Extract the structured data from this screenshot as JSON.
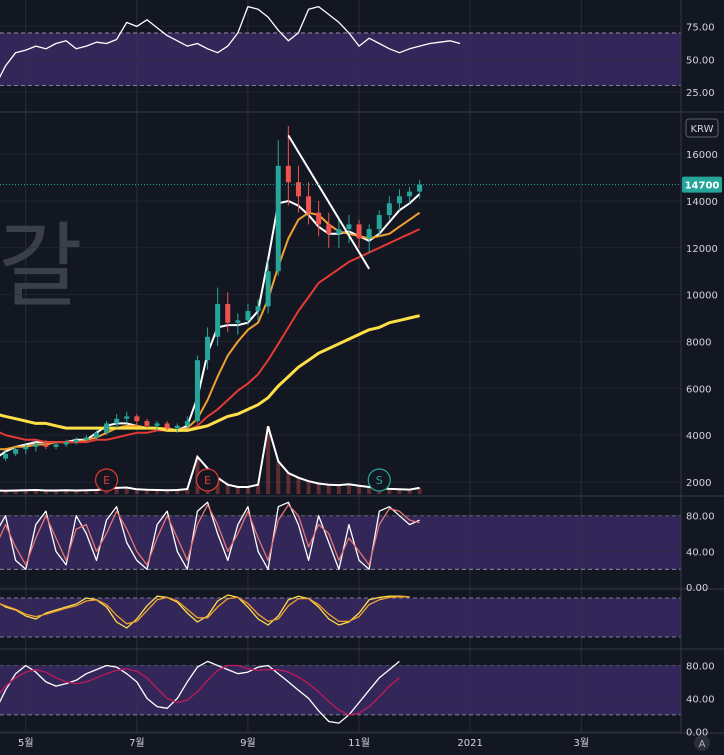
{
  "chart_data": [
    {
      "type": "line",
      "panel": "rsi",
      "y_ticks": [
        "75.00",
        "50.00",
        "25.00"
      ],
      "y_tick_values": [
        75,
        50,
        25
      ],
      "ylim": [
        10,
        95
      ],
      "bands": [
        70,
        30
      ],
      "series": [
        {
          "color": "#ffffff",
          "values": [
            44,
            38,
            26,
            20,
            30,
            45,
            55,
            57,
            60,
            58,
            62,
            64,
            58,
            60,
            63,
            62,
            65,
            78,
            75,
            80,
            74,
            68,
            64,
            60,
            62,
            58,
            55,
            60,
            70,
            90,
            88,
            82,
            72,
            64,
            70,
            88,
            90,
            84,
            78,
            70,
            60,
            66,
            62,
            58,
            55,
            58,
            60,
            62,
            63,
            64,
            62
          ]
        }
      ]
    },
    {
      "type": "candlestick",
      "panel": "price",
      "currency": "KRW",
      "last_price": "14700",
      "y_ticks": [
        "16000",
        "14000",
        "12000",
        "10000",
        "8000",
        "6000",
        "4000",
        "2000"
      ],
      "y_tick_values": [
        16000,
        14000,
        12000,
        10000,
        8000,
        6000,
        4000,
        2000
      ],
      "ylim": [
        1400,
        17800
      ],
      "candles": [
        [
          4200,
          4500,
          3900,
          4300
        ],
        [
          4300,
          4400,
          3300,
          3500
        ],
        [
          3500,
          3700,
          2800,
          3000
        ],
        [
          3000,
          3200,
          2500,
          2800
        ],
        [
          2800,
          3100,
          2600,
          3000
        ],
        [
          3000,
          3300,
          2900,
          3200
        ],
        [
          3200,
          3500,
          3100,
          3400
        ],
        [
          3400,
          3600,
          3200,
          3500
        ],
        [
          3500,
          3700,
          3300,
          3600
        ],
        [
          3600,
          3800,
          3400,
          3500
        ],
        [
          3500,
          3700,
          3400,
          3600
        ],
        [
          3600,
          3800,
          3500,
          3700
        ],
        [
          3700,
          3900,
          3600,
          3800
        ],
        [
          3800,
          4000,
          3700,
          3900
        ],
        [
          3900,
          4200,
          3800,
          4100
        ],
        [
          4100,
          4600,
          4000,
          4500
        ],
        [
          4500,
          4900,
          4300,
          4700
        ],
        [
          4700,
          5000,
          4500,
          4800
        ],
        [
          4800,
          4900,
          4400,
          4600
        ],
        [
          4600,
          4700,
          4300,
          4400
        ],
        [
          4400,
          4600,
          4200,
          4500
        ],
        [
          4500,
          4600,
          4200,
          4300
        ],
        [
          4300,
          4500,
          4100,
          4400
        ],
        [
          4400,
          4800,
          4300,
          4600
        ],
        [
          4600,
          7400,
          4500,
          7200
        ],
        [
          7200,
          8600,
          6800,
          8200
        ],
        [
          8200,
          10300,
          7800,
          9600
        ],
        [
          9600,
          10100,
          8400,
          8800
        ],
        [
          8800,
          9200,
          8300,
          8900
        ],
        [
          8900,
          9600,
          8700,
          9300
        ],
        [
          9300,
          9800,
          8900,
          9500
        ],
        [
          9500,
          11500,
          9200,
          11000
        ],
        [
          11000,
          16600,
          10800,
          15500
        ],
        [
          15500,
          17200,
          13800,
          14800
        ],
        [
          14800,
          15500,
          13500,
          14200
        ],
        [
          14200,
          14800,
          13000,
          13500
        ],
        [
          13500,
          14000,
          12500,
          13000
        ],
        [
          13000,
          13500,
          12000,
          12600
        ],
        [
          12600,
          13200,
          12000,
          12800
        ],
        [
          12800,
          13400,
          12200,
          13000
        ],
        [
          13000,
          13200,
          12000,
          12400
        ],
        [
          12400,
          13000,
          11800,
          12800
        ],
        [
          12800,
          13600,
          12500,
          13400
        ],
        [
          13400,
          14200,
          13200,
          13900
        ],
        [
          13900,
          14500,
          13600,
          14200
        ],
        [
          14200,
          14600,
          13900,
          14400
        ],
        [
          14400,
          14900,
          14100,
          14700
        ]
      ],
      "series": [
        {
          "color": "#ffffff",
          "values": [
            4300,
            3600,
            3000,
            2800,
            3000,
            3300,
            3500,
            3600,
            3700,
            3700,
            3700,
            3700,
            3800,
            3800,
            4100,
            4400,
            4500,
            4500,
            4400,
            4300,
            4300,
            4200,
            4200,
            4400,
            5600,
            7500,
            8600,
            8700,
            8700,
            8800,
            9300,
            11500,
            13900,
            14000,
            13800,
            13400,
            12900,
            12600,
            12600,
            12700,
            12500,
            12300,
            12600,
            13100,
            13600,
            13900,
            14300
          ]
        },
        {
          "color": "#f0a030",
          "values": [
            4800,
            4300,
            3800,
            3500,
            3400,
            3400,
            3500,
            3500,
            3600,
            3600,
            3700,
            3700,
            3700,
            3800,
            3900,
            4100,
            4300,
            4400,
            4400,
            4300,
            4300,
            4300,
            4200,
            4300,
            4700,
            5500,
            6500,
            7400,
            8000,
            8500,
            8800,
            9800,
            11200,
            12400,
            13200,
            13500,
            13400,
            13000,
            12700,
            12600,
            12500,
            12400,
            12500,
            12600,
            12900,
            13200,
            13500
          ]
        },
        {
          "color": "#e53935",
          "values": [
            5000,
            4800,
            4600,
            4400,
            4200,
            4000,
            3900,
            3800,
            3800,
            3700,
            3700,
            3700,
            3700,
            3700,
            3800,
            3800,
            3900,
            4000,
            4100,
            4100,
            4200,
            4200,
            4200,
            4200,
            4400,
            4800,
            5100,
            5500,
            5900,
            6200,
            6600,
            7200,
            7900,
            8600,
            9300,
            9900,
            10500,
            10800,
            11100,
            11400,
            11600,
            11800,
            12000,
            12200,
            12400,
            12600,
            12800
          ]
        },
        {
          "color": "#fde047",
          "values": [
            5500,
            5400,
            5200,
            5000,
            4900,
            4800,
            4700,
            4600,
            4500,
            4500,
            4400,
            4300,
            4300,
            4300,
            4300,
            4300,
            4300,
            4300,
            4300,
            4300,
            4300,
            4200,
            4200,
            4200,
            4300,
            4400,
            4600,
            4800,
            4900,
            5100,
            5300,
            5600,
            6100,
            6500,
            6900,
            7200,
            7500,
            7700,
            7900,
            8100,
            8300,
            8500,
            8600,
            8800,
            8900,
            9000,
            9100
          ]
        }
      ],
      "trendline": {
        "color": "#ffffff",
        "values": [
          16800,
          11100
        ]
      },
      "volume": [
        200,
        180,
        160,
        150,
        150,
        140,
        150,
        160,
        170,
        150,
        150,
        160,
        150,
        160,
        170,
        220,
        260,
        280,
        200,
        180,
        170,
        160,
        170,
        210,
        1600,
        1100,
        700,
        400,
        300,
        300,
        400,
        2900,
        1400,
        900,
        700,
        550,
        450,
        400,
        380,
        420,
        350,
        300,
        250,
        220,
        200,
        190,
        260
      ],
      "event_markers": [
        {
          "label": "E",
          "color": "#e53935",
          "index": 15
        },
        {
          "label": "E",
          "color": "#e53935",
          "index": 25
        },
        {
          "label": "S",
          "color": "#26a69a",
          "index": 42
        }
      ],
      "watermark": "갈"
    },
    {
      "type": "line",
      "panel": "stochastic",
      "y_ticks": [
        "80.00",
        "40.00",
        "0.00"
      ],
      "y_tick_values": [
        80,
        40,
        0
      ],
      "ylim": [
        -2,
        102
      ],
      "bands": [
        80,
        20
      ],
      "series": [
        {
          "color": "#ffffff",
          "values": [
            40,
            70,
            20,
            15,
            60,
            80,
            30,
            20,
            70,
            85,
            40,
            25,
            80,
            60,
            30,
            75,
            90,
            50,
            30,
            20,
            70,
            85,
            40,
            20,
            85,
            95,
            60,
            30,
            70,
            90,
            40,
            20,
            90,
            95,
            70,
            30,
            80,
            50,
            20,
            70,
            30,
            20,
            85,
            90,
            80,
            70,
            75
          ]
        },
        {
          "color": "#e57373",
          "values": [
            45,
            60,
            35,
            20,
            45,
            70,
            45,
            25,
            55,
            80,
            55,
            30,
            65,
            70,
            40,
            60,
            85,
            65,
            40,
            25,
            55,
            80,
            55,
            30,
            70,
            92,
            70,
            40,
            60,
            85,
            55,
            30,
            75,
            92,
            80,
            45,
            70,
            60,
            30,
            55,
            40,
            25,
            70,
            88,
            85,
            75,
            72
          ]
        }
      ]
    },
    {
      "type": "line",
      "panel": "oscillator",
      "ylim": [
        0,
        100
      ],
      "bands": [
        85,
        20
      ],
      "series": [
        {
          "color": "#fde047",
          "values": [
            25,
            30,
            55,
            75,
            80,
            70,
            65,
            55,
            50,
            60,
            65,
            70,
            75,
            85,
            82,
            70,
            45,
            35,
            50,
            72,
            88,
            86,
            78,
            60,
            45,
            55,
            80,
            90,
            86,
            70,
            50,
            40,
            55,
            82,
            88,
            84,
            70,
            50,
            40,
            45,
            60,
            82,
            86,
            88,
            88,
            87
          ]
        },
        {
          "color": "#f0a030",
          "values": [
            22,
            28,
            45,
            65,
            78,
            72,
            66,
            58,
            54,
            58,
            63,
            68,
            72,
            80,
            82,
            74,
            56,
            42,
            46,
            64,
            82,
            86,
            80,
            66,
            52,
            52,
            70,
            84,
            86,
            76,
            58,
            46,
            50,
            72,
            84,
            84,
            74,
            58,
            46,
            46,
            54,
            74,
            82,
            86,
            87,
            87
          ]
        }
      ]
    },
    {
      "type": "line",
      "panel": "momentum",
      "y_ticks": [
        "80.00",
        "40.00",
        "0.00"
      ],
      "y_tick_values": [
        80,
        40,
        0
      ],
      "ylim": [
        -2,
        100
      ],
      "bands": [
        80,
        20
      ],
      "series": [
        {
          "color": "#ffffff",
          "values": [
            30,
            15,
            10,
            12,
            25,
            50,
            70,
            80,
            72,
            60,
            55,
            58,
            62,
            70,
            75,
            80,
            78,
            70,
            60,
            40,
            30,
            28,
            40,
            60,
            78,
            85,
            80,
            75,
            70,
            72,
            78,
            80,
            70,
            60,
            50,
            40,
            25,
            12,
            10,
            20,
            35,
            50,
            65,
            75,
            85
          ]
        },
        {
          "color": "#c2185b",
          "values": [
            8,
            10,
            15,
            25,
            40,
            55,
            65,
            72,
            75,
            72,
            65,
            60,
            58,
            60,
            65,
            70,
            74,
            76,
            73,
            65,
            52,
            40,
            35,
            38,
            48,
            62,
            74,
            80,
            80,
            76,
            74,
            75,
            75,
            72,
            66,
            58,
            48,
            36,
            26,
            20,
            22,
            30,
            42,
            55,
            65
          ]
        }
      ]
    }
  ],
  "x_axis": {
    "labels": [
      "5월",
      "7월",
      "9월",
      "11월",
      "2021",
      "3월"
    ],
    "bar_index": [
      7,
      18,
      29,
      40,
      51,
      62
    ],
    "total_bars": 67
  },
  "corner_button": "A",
  "colors": {
    "background": "#131722",
    "band_fill": "#3a2a63",
    "grid": "#2a2e39",
    "up": "#26a69a",
    "down": "#ef5350",
    "last_price_badge": "#26a69a",
    "axis_text": "#d1d4dc"
  }
}
